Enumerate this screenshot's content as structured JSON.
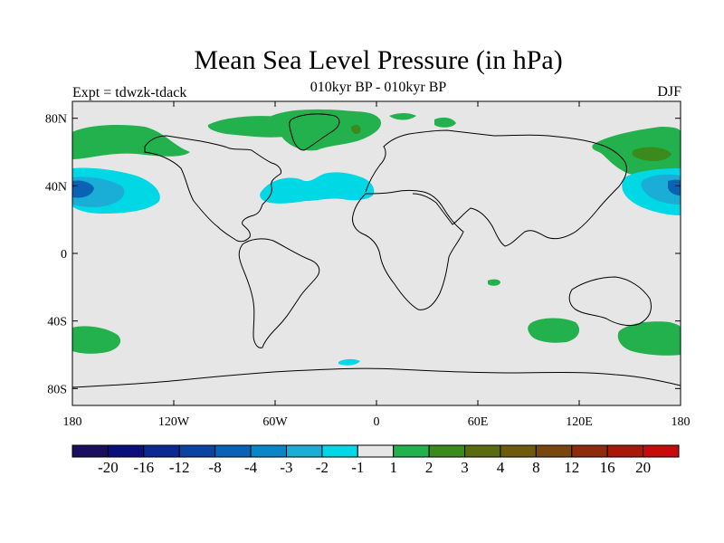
{
  "title": "Mean Sea Level Pressure (in hPa)",
  "subtitle": "010kyr BP - 010kyr BP",
  "left_label": "Expt = tdwzk-tdack",
  "right_label": "DJF",
  "map": {
    "lon_range": [
      -180,
      180
    ],
    "lat_range": [
      -90,
      90
    ],
    "background": "#e6e6e6",
    "lat_ticks": [
      {
        "value": 80,
        "label": "80N"
      },
      {
        "value": 40,
        "label": "40N"
      },
      {
        "value": 0,
        "label": "0"
      },
      {
        "value": -40,
        "label": "40S"
      },
      {
        "value": -80,
        "label": "80S"
      }
    ],
    "lon_ticks": [
      {
        "value": -180,
        "label": "180"
      },
      {
        "value": -120,
        "label": "120W"
      },
      {
        "value": -60,
        "label": "60W"
      },
      {
        "value": 0,
        "label": "0"
      },
      {
        "value": 60,
        "label": "60E"
      },
      {
        "value": 120,
        "label": "120E"
      },
      {
        "value": 180,
        "label": "180"
      }
    ]
  },
  "colorbar": {
    "colors": [
      "#1a0f5c",
      "#0b0f7a",
      "#0a2a92",
      "#0a44a0",
      "#0a62b4",
      "#0a86c6",
      "#1aaed6",
      "#00d8e6",
      "#e6e6e6",
      "#22b14c",
      "#3a8a1e",
      "#5a6a10",
      "#6e5a0e",
      "#7a4610",
      "#8c2c0c",
      "#a8180a",
      "#c80a0a"
    ],
    "labels": [
      "-20",
      "-16",
      "-12",
      "-8",
      "-4",
      "-3",
      "-2",
      "-1",
      "1",
      "2",
      "3",
      "4",
      "8",
      "12",
      "16",
      "20"
    ]
  }
}
